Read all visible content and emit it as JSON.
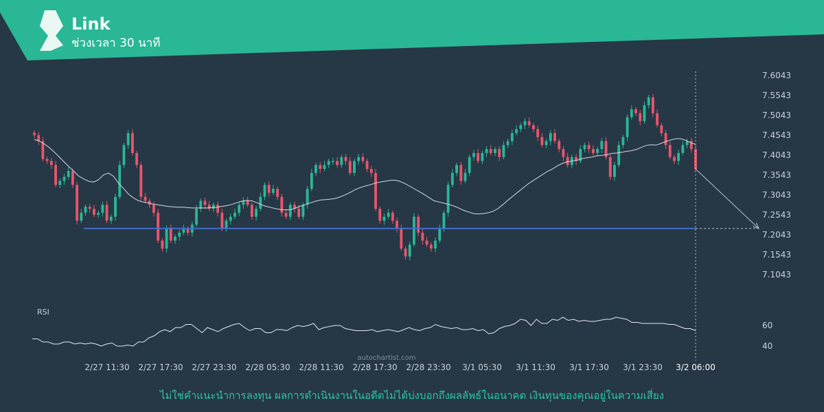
{
  "header": {
    "title": "Link",
    "subtitle": "ช่วงเวลา 30 นาที",
    "banner_color": "#2ab795"
  },
  "watermark": "autochartist.com",
  "disclaimer": "ไม่ใช่คำแนะนำการลงทุน ผลการดำเนินงานในอดีตไม่ได้บ่งบอกถึงผลลัพธ์ในอนาคต เงินทุนของคุณอยู่ในความเสี่ยง",
  "colors": {
    "background": "#263746",
    "up": "#2ab795",
    "down": "#e8566b",
    "ma": "#d5dde4",
    "level": "#3f6fcf",
    "rsi": "#e7ecf1",
    "projection": "#b9c4ce"
  },
  "chart_data": {
    "type": "candlestick",
    "ylim": [
      7.07,
      7.615
    ],
    "yticks": [
      "7.6043",
      "7.5543",
      "7.5043",
      "7.4543",
      "7.4043",
      "7.3543",
      "7.3043",
      "7.2543",
      "7.2043",
      "7.1543",
      "7.1043"
    ],
    "xticks": [
      "2/27 11:30",
      "2/27 17:30",
      "2/27 23:30",
      "2/28 05:30",
      "2/28 11:30",
      "2/28 17:30",
      "2/28 23:30",
      "3/1 05:30",
      "3/1 11:30",
      "3/1 17:30",
      "3/1 23:30",
      "3/2 06:00"
    ],
    "support_level": 7.2205,
    "projection_target": 7.2205,
    "close": [
      7.455,
      7.44,
      7.395,
      7.39,
      7.38,
      7.33,
      7.34,
      7.35,
      7.365,
      7.33,
      7.24,
      7.26,
      7.275,
      7.27,
      7.255,
      7.26,
      7.28,
      7.24,
      7.25,
      7.3,
      7.38,
      7.43,
      7.46,
      7.41,
      7.38,
      7.3,
      7.29,
      7.28,
      7.26,
      7.19,
      7.17,
      7.22,
      7.19,
      7.2,
      7.21,
      7.22,
      7.21,
      7.23,
      7.27,
      7.29,
      7.28,
      7.27,
      7.28,
      7.26,
      7.22,
      7.24,
      7.25,
      7.26,
      7.28,
      7.29,
      7.28,
      7.25,
      7.27,
      7.3,
      7.33,
      7.31,
      7.32,
      7.3,
      7.26,
      7.25,
      7.28,
      7.27,
      7.25,
      7.28,
      7.32,
      7.36,
      7.38,
      7.37,
      7.38,
      7.39,
      7.39,
      7.38,
      7.4,
      7.39,
      7.36,
      7.39,
      7.4,
      7.39,
      7.37,
      7.36,
      7.27,
      7.24,
      7.25,
      7.26,
      7.24,
      7.22,
      7.17,
      7.15,
      7.18,
      7.25,
      7.21,
      7.19,
      7.18,
      7.17,
      7.19,
      7.22,
      7.26,
      7.33,
      7.36,
      7.38,
      7.34,
      7.36,
      7.4,
      7.41,
      7.39,
      7.41,
      7.42,
      7.41,
      7.42,
      7.4,
      7.43,
      7.44,
      7.46,
      7.47,
      7.48,
      7.49,
      7.48,
      7.47,
      7.45,
      7.43,
      7.44,
      7.46,
      7.44,
      7.42,
      7.4,
      7.38,
      7.4,
      7.39,
      7.42,
      7.43,
      7.42,
      7.41,
      7.42,
      7.44,
      7.4,
      7.35,
      7.38,
      7.43,
      7.45,
      7.5,
      7.52,
      7.51,
      7.49,
      7.53,
      7.55,
      7.51,
      7.48,
      7.46,
      7.43,
      7.4,
      7.39,
      7.41,
      7.43,
      7.44,
      7.42,
      7.37
    ],
    "ma": [
      7.444,
      7.44,
      7.433,
      7.424,
      7.413,
      7.401,
      7.388,
      7.376,
      7.364,
      7.352,
      7.345,
      7.339,
      7.337,
      7.343,
      7.355,
      7.36,
      7.352,
      7.335,
      7.322,
      7.308,
      7.298,
      7.291,
      7.287,
      7.285,
      7.282,
      7.28,
      7.278,
      7.276,
      7.275,
      7.274,
      7.274,
      7.273,
      7.272,
      7.272,
      7.272,
      7.272,
      7.273,
      7.274,
      7.276,
      7.278,
      7.281,
      7.285,
      7.289,
      7.291,
      7.29,
      7.286,
      7.28,
      7.276,
      7.273,
      7.27,
      7.268,
      7.267,
      7.268,
      7.272,
      7.277,
      7.281,
      7.285,
      7.289,
      7.292,
      7.293,
      7.294,
      7.296,
      7.3,
      7.305,
      7.311,
      7.318,
      7.323,
      7.327,
      7.33,
      7.334,
      7.337,
      7.339,
      7.341,
      7.342,
      7.339,
      7.334,
      7.327,
      7.32,
      7.313,
      7.306,
      7.298,
      7.29,
      7.287,
      7.284,
      7.281,
      7.277,
      7.272,
      7.266,
      7.262,
      7.258,
      7.257,
      7.258,
      7.26,
      7.264,
      7.271,
      7.281,
      7.292,
      7.302,
      7.312,
      7.322,
      7.332,
      7.34,
      7.348,
      7.356,
      7.364,
      7.37,
      7.378,
      7.384,
      7.388,
      7.39,
      7.392,
      7.396,
      7.398,
      7.4,
      7.403,
      7.404,
      7.406,
      7.409,
      7.41,
      7.412,
      7.414,
      7.416,
      7.419,
      7.424,
      7.429,
      7.431,
      7.43,
      7.434,
      7.439,
      7.443,
      7.446,
      7.446,
      7.442,
      7.436,
      7.432
    ],
    "rsi": [
      47,
      47,
      44,
      44,
      42,
      42,
      44,
      44,
      42,
      43,
      42,
      43,
      42,
      40,
      42,
      43,
      40,
      40,
      41,
      40,
      44,
      44,
      48,
      50,
      54,
      56,
      54,
      58,
      58,
      61,
      61,
      57,
      53,
      58,
      56,
      54,
      57,
      59,
      61,
      62,
      58,
      55,
      57,
      57,
      53,
      53,
      56,
      56,
      55,
      58,
      60,
      59,
      60,
      62,
      56,
      58,
      59,
      60,
      60,
      57,
      56,
      55,
      55,
      55,
      56,
      54,
      55,
      56,
      55,
      54,
      56,
      58,
      56,
      55,
      57,
      58,
      61,
      59,
      58,
      57,
      58,
      56,
      56,
      57,
      55,
      56,
      52,
      53,
      57,
      59,
      60,
      62,
      66,
      65,
      60,
      66,
      62,
      62,
      66,
      65,
      68,
      65,
      66,
      64,
      65,
      64,
      64,
      65,
      66,
      66,
      68,
      67,
      66,
      63,
      63,
      62,
      62,
      62,
      62,
      62,
      61,
      61,
      59,
      57,
      57,
      55
    ],
    "rsi_ticks": [
      "60",
      "40"
    ],
    "rsi_label": "RSI"
  }
}
